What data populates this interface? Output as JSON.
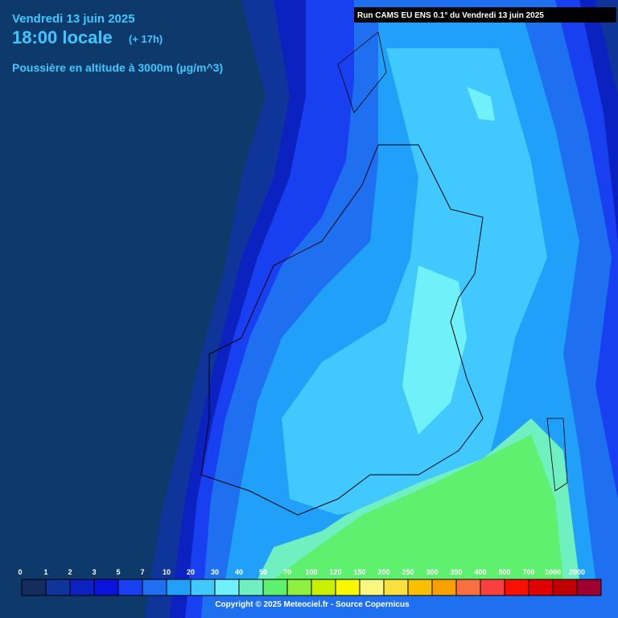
{
  "header": {
    "date": "Vendredi 13 juin 2025",
    "time": "18:00 locale",
    "offset": "(+ 17h)",
    "variable": "Poussière en altitude à 3000m (µg/m^3)",
    "run": "Run CAMS EU ENS 0.1° du Vendredi 13 juin 2025"
  },
  "legend": {
    "items": [
      {
        "label": 0,
        "color": "#142c5e"
      },
      {
        "label": 1,
        "color": "#10359a"
      },
      {
        "label": 2,
        "color": "#0c22c0"
      },
      {
        "label": 3,
        "color": "#0a12dc"
      },
      {
        "label": 5,
        "color": "#1840f0"
      },
      {
        "label": 7,
        "color": "#1e70f0"
      },
      {
        "label": 10,
        "color": "#20a0f8"
      },
      {
        "label": 20,
        "color": "#40c8ff"
      },
      {
        "label": 30,
        "color": "#70f0f8"
      },
      {
        "label": 40,
        "color": "#70f0c0"
      },
      {
        "label": 50,
        "color": "#60f070"
      },
      {
        "label": 70,
        "color": "#90f040"
      },
      {
        "label": 100,
        "color": "#c8f000"
      },
      {
        "label": 120,
        "color": "#f8f800"
      },
      {
        "label": 150,
        "color": "#f8f880"
      },
      {
        "label": 200,
        "color": "#f8e040"
      },
      {
        "label": 250,
        "color": "#f8c000"
      },
      {
        "label": 300,
        "color": "#f8a000"
      },
      {
        "label": 350,
        "color": "#f87040"
      },
      {
        "label": 400,
        "color": "#f84040"
      },
      {
        "label": 500,
        "color": "#f81000"
      },
      {
        "label": 700,
        "color": "#e00000"
      },
      {
        "label": 1000,
        "color": "#c00000"
      },
      {
        "label": 2000,
        "color": "#a00030"
      }
    ]
  },
  "footer": {
    "copyright": "Copyright © 2025 Meteociel.fr - Source Copernicus"
  }
}
